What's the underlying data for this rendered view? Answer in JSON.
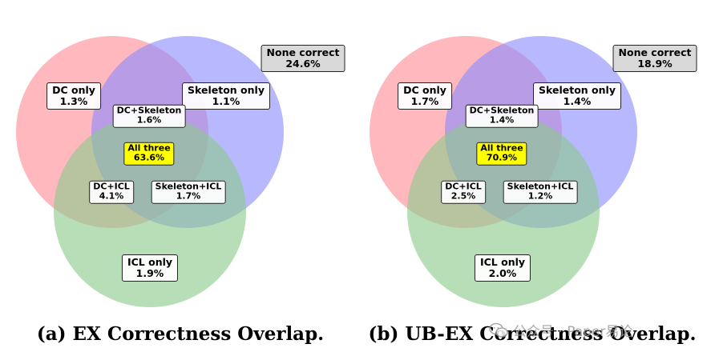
{
  "chart_data": [
    {
      "type": "venn",
      "sets": [
        "DC",
        "Skeleton",
        "ICL"
      ],
      "set_colors": {
        "DC": "#ff8c94",
        "Skeleton": "#8c8cff",
        "ICL": "#8cc98c"
      },
      "regions": {
        "dc_only": {
          "label": "DC only",
          "value": "1.3%"
        },
        "skeleton_only": {
          "label": "Skeleton only",
          "value": "1.1%"
        },
        "icl_only": {
          "label": "ICL only",
          "value": "1.9%"
        },
        "dc_skeleton": {
          "label": "DC+Skeleton",
          "value": "1.6%"
        },
        "dc_icl": {
          "label": "DC+ICL",
          "value": "4.1%"
        },
        "skeleton_icl": {
          "label": "Skeleton+ICL",
          "value": "1.7%"
        },
        "all_three": {
          "label": "All three",
          "value": "63.6%"
        },
        "none_correct": {
          "label": "None correct",
          "value": "24.6%"
        }
      },
      "caption": "(a) EX Correctness Overlap."
    },
    {
      "type": "venn",
      "sets": [
        "DC",
        "Skeleton",
        "ICL"
      ],
      "set_colors": {
        "DC": "#ff8c94",
        "Skeleton": "#8c8cff",
        "ICL": "#8cc98c"
      },
      "regions": {
        "dc_only": {
          "label": "DC only",
          "value": "1.7%"
        },
        "skeleton_only": {
          "label": "Skeleton only",
          "value": "1.4%"
        },
        "icl_only": {
          "label": "ICL only",
          "value": "2.0%"
        },
        "dc_skeleton": {
          "label": "DC+Skeleton",
          "value": "1.4%"
        },
        "dc_icl": {
          "label": "DC+ICL",
          "value": "2.5%"
        },
        "skeleton_icl": {
          "label": "Skeleton+ICL",
          "value": "1.2%"
        },
        "all_three": {
          "label": "All three",
          "value": "70.9%"
        },
        "none_correct": {
          "label": "None correct",
          "value": "18.9%"
        }
      },
      "caption": "(b) UB-EX Correctness Overlap."
    }
  ],
  "watermark": {
    "icon": "wechat-icon",
    "text": "公众号 · Paper易论"
  }
}
